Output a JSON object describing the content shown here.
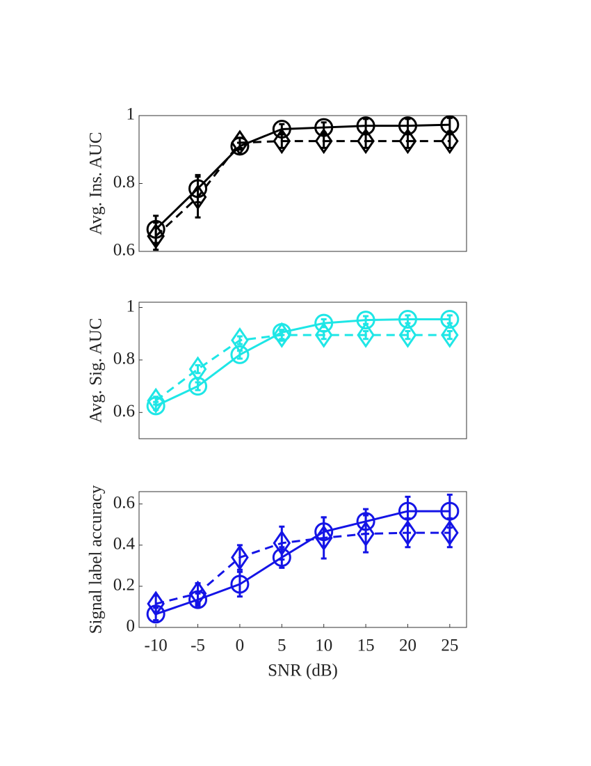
{
  "chart_data": [
    {
      "type": "line",
      "ylabel": "Avg. Ins. AUC",
      "x": [
        -10,
        -5,
        0,
        5,
        10,
        15,
        20,
        25
      ],
      "xlim": [
        -12,
        27
      ],
      "ylim": [
        0.6,
        1
      ],
      "yticks": [
        0.6,
        0.8,
        1
      ],
      "series": [
        {
          "color": "#000000",
          "marker": "circle",
          "dashed": false,
          "values": [
            0.665,
            0.785,
            0.91,
            0.96,
            0.965,
            0.97,
            0.97,
            0.973
          ],
          "errors": [
            0.04,
            0.04,
            0.01,
            0.015,
            0.015,
            0.02,
            0.02,
            0.02
          ]
        },
        {
          "color": "#000000",
          "marker": "diamond",
          "dashed": true,
          "values": [
            0.645,
            0.76,
            0.92,
            0.925,
            0.925,
            0.925,
            0.925,
            0.925
          ],
          "errors": [
            0.04,
            0.06,
            0.015,
            0.02,
            0.02,
            0.02,
            0.02,
            0.02
          ]
        }
      ]
    },
    {
      "type": "line",
      "ylabel": "Avg. Sig. AUC",
      "x": [
        -10,
        -5,
        0,
        5,
        10,
        15,
        20,
        25
      ],
      "xlim": [
        -12,
        27
      ],
      "ylim": [
        0.5,
        1.02
      ],
      "yticks": [
        0.6,
        0.8,
        1
      ],
      "series": [
        {
          "color": "#1ee6e6",
          "marker": "circle",
          "dashed": false,
          "values": [
            0.625,
            0.7,
            0.82,
            0.905,
            0.94,
            0.952,
            0.955,
            0.955
          ],
          "errors": [
            0.015,
            0.015,
            0.015,
            0.01,
            0.015,
            0.015,
            0.015,
            0.015
          ]
        },
        {
          "color": "#1ee6e6",
          "marker": "diamond",
          "dashed": true,
          "values": [
            0.645,
            0.765,
            0.875,
            0.895,
            0.895,
            0.895,
            0.895,
            0.895
          ],
          "errors": [
            0.015,
            0.015,
            0.015,
            0.015,
            0.015,
            0.015,
            0.015,
            0.015
          ]
        }
      ]
    },
    {
      "type": "line",
      "ylabel": "Signal label accuracy",
      "xlabel": "SNR (dB)",
      "x": [
        -10,
        -5,
        0,
        5,
        10,
        15,
        20,
        25
      ],
      "xlim": [
        -12,
        27
      ],
      "xticks": [
        -10,
        -5,
        0,
        5,
        10,
        15,
        20,
        25
      ],
      "ylim": [
        0,
        0.66
      ],
      "yticks": [
        0,
        0.2,
        0.4,
        0.6
      ],
      "series": [
        {
          "color": "#1414e6",
          "marker": "circle",
          "dashed": false,
          "values": [
            0.065,
            0.135,
            0.21,
            0.34,
            0.465,
            0.515,
            0.565,
            0.565
          ],
          "errors": [
            0.03,
            0.03,
            0.06,
            0.05,
            0.07,
            0.06,
            0.07,
            0.08
          ]
        },
        {
          "color": "#1414e6",
          "marker": "diamond",
          "dashed": true,
          "values": [
            0.115,
            0.165,
            0.34,
            0.41,
            0.435,
            0.455,
            0.46,
            0.46
          ],
          "errors": [
            0.04,
            0.05,
            0.06,
            0.08,
            0.1,
            0.09,
            0.07,
            0.07
          ]
        }
      ]
    }
  ]
}
